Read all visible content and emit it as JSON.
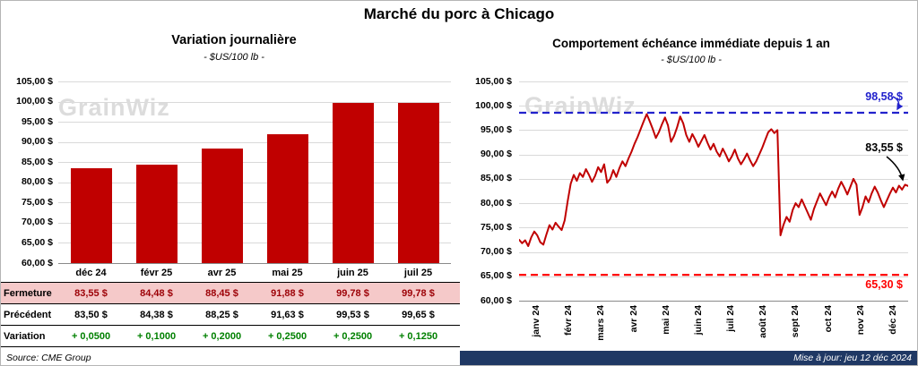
{
  "header": {
    "title": "Marché du porc à Chicago"
  },
  "watermark": "GrainWiz",
  "chart_data": [
    {
      "type": "bar",
      "title": "Variation journalière",
      "subtitle": "- $US/100 lb -",
      "categories": [
        "déc 24",
        "févr 25",
        "avr 25",
        "mai 25",
        "juin 25",
        "juil 25"
      ],
      "values": [
        83.55,
        84.48,
        88.45,
        91.88,
        99.78,
        99.78
      ],
      "ylim": [
        60,
        105
      ],
      "ytick_step": 5,
      "ytick_labels": [
        "60,00 $",
        "65,00 $",
        "70,00 $",
        "75,00 $",
        "80,00 $",
        "85,00 $",
        "90,00 $",
        "95,00 $",
        "100,00 $",
        "105,00 $"
      ],
      "bar_color": "#C00000",
      "grid": true,
      "legend": "none"
    },
    {
      "type": "line",
      "title": "Comportement échéance immédiate depuis 1 an",
      "subtitle": "- $US/100 lb -",
      "x_labels": [
        "janv 24",
        "févr 24",
        "mars 24",
        "avr 24",
        "mai 24",
        "juin 24",
        "juil 24",
        "août 24",
        "sept 24",
        "oct 24",
        "nov 24",
        "déc 24"
      ],
      "values": [
        72.5,
        71.8,
        72.4,
        71.2,
        73.0,
        74.2,
        73.4,
        72.0,
        71.5,
        73.6,
        75.5,
        74.6,
        76.0,
        75.2,
        74.5,
        76.5,
        80.5,
        84.0,
        85.8,
        84.6,
        86.2,
        85.4,
        87.0,
        85.8,
        84.4,
        85.6,
        87.4,
        86.4,
        88.0,
        84.2,
        85.0,
        86.8,
        85.4,
        87.2,
        88.6,
        87.6,
        89.2,
        90.6,
        92.2,
        93.6,
        95.2,
        96.8,
        98.3,
        96.8,
        95.2,
        93.4,
        94.6,
        96.2,
        97.6,
        96.0,
        92.6,
        93.8,
        95.6,
        97.8,
        96.4,
        94.0,
        92.6,
        94.2,
        93.0,
        91.6,
        92.8,
        94.0,
        92.4,
        91.0,
        92.2,
        90.6,
        89.6,
        91.2,
        90.0,
        88.6,
        89.6,
        91.0,
        89.2,
        88.0,
        89.0,
        90.2,
        88.8,
        87.6,
        88.6,
        90.0,
        91.4,
        93.0,
        94.6,
        95.2,
        94.4,
        95.0,
        73.4,
        75.6,
        77.2,
        76.2,
        78.6,
        80.0,
        79.2,
        80.8,
        79.4,
        78.0,
        76.6,
        78.8,
        80.4,
        82.0,
        80.8,
        79.6,
        81.2,
        82.4,
        81.2,
        83.0,
        84.4,
        83.2,
        81.8,
        83.4,
        85.0,
        83.8,
        77.6,
        79.2,
        81.4,
        80.2,
        82.0,
        83.4,
        82.2,
        80.6,
        79.2,
        80.6,
        82.0,
        83.2,
        82.2,
        83.6,
        82.8,
        83.8,
        83.55
      ],
      "ylim": [
        60,
        105
      ],
      "ytick_step": 5,
      "ytick_labels": [
        "60,00 $",
        "65,00 $",
        "70,00 $",
        "75,00 $",
        "80,00 $",
        "85,00 $",
        "90,00 $",
        "95,00 $",
        "100,00 $",
        "105,00 $"
      ],
      "line_color": "#C00000",
      "grid": true,
      "annotations": [
        {
          "type": "hline",
          "value": 98.58,
          "label": "98,58 $",
          "color": "#2222CC",
          "style": "dashed"
        },
        {
          "type": "hline",
          "value": 65.3,
          "label": "65,30 $",
          "color": "#FF0000",
          "style": "dashed"
        },
        {
          "type": "last_point",
          "value": 83.55,
          "label": "83,55 $",
          "color": "#000000"
        }
      ]
    }
  ],
  "table": {
    "rows": [
      {
        "label": "Fermeture",
        "values": [
          "83,55 $",
          "84,48 $",
          "88,45 $",
          "91,88 $",
          "99,78 $",
          "99,78 $"
        ]
      },
      {
        "label": "Précédent",
        "values": [
          "83,50 $",
          "84,38 $",
          "88,25 $",
          "91,63 $",
          "99,53 $",
          "99,65 $"
        ]
      },
      {
        "label": "Variation",
        "values": [
          "+ 0,0500",
          "+ 0,1000",
          "+ 0,2000",
          "+ 0,2500",
          "+ 0,2500",
          "+ 0,1250"
        ]
      }
    ]
  },
  "footer": {
    "source": "Source: CME Group",
    "updated": "Mise à jour: jeu 12 déc 2024"
  }
}
